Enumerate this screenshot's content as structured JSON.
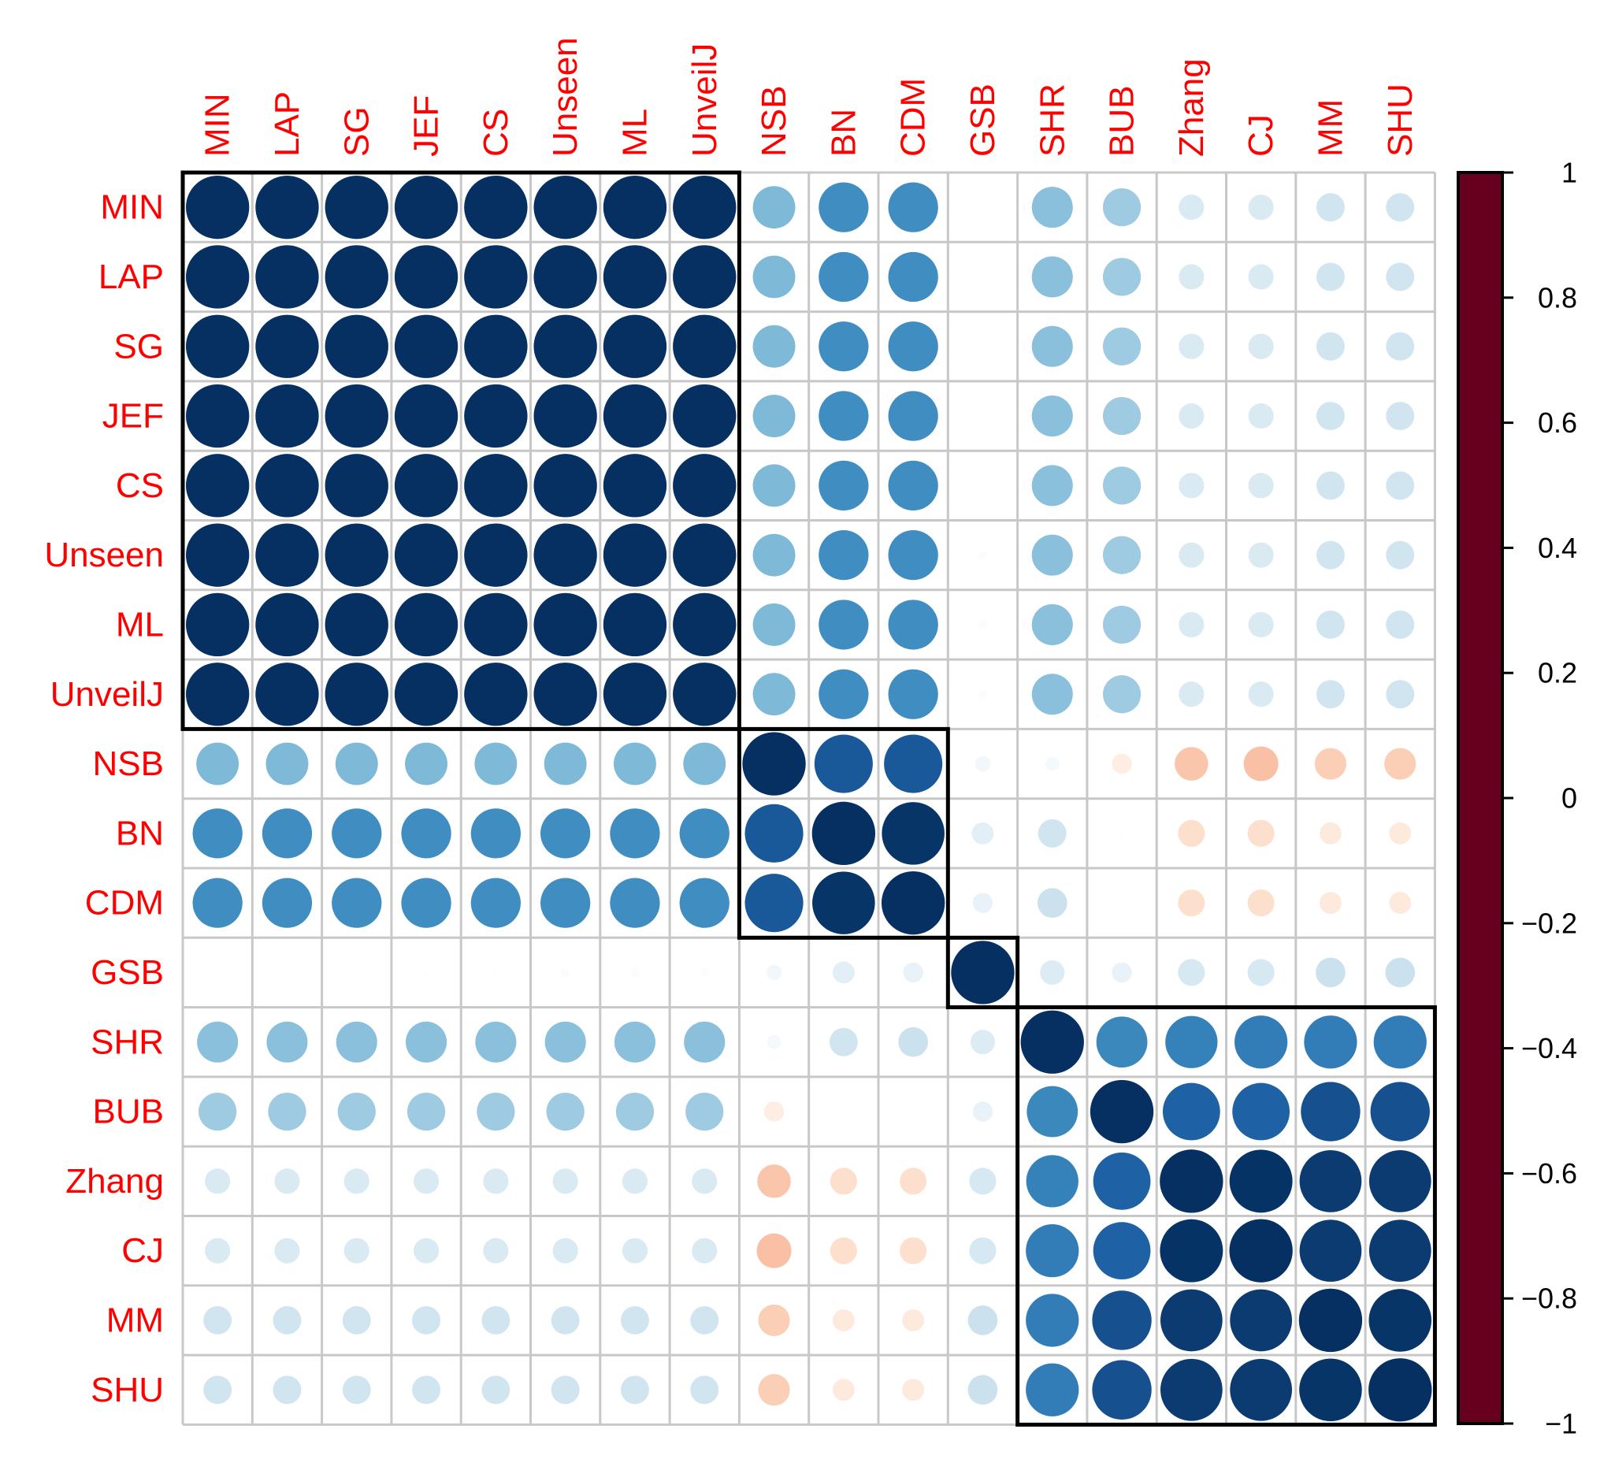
{
  "chart_data": {
    "type": "heatmap",
    "style": "correlation-circles",
    "labels": [
      "MIN",
      "LAP",
      "SG",
      "JEF",
      "CS",
      "Unseen",
      "ML",
      "UnveilJ",
      "NSB",
      "BN",
      "CDM",
      "GSB",
      "SHR",
      "BUB",
      "Zhang",
      "CJ",
      "MM",
      "SHU"
    ],
    "matrix": [
      [
        1,
        1,
        1,
        1,
        1,
        1,
        1,
        1,
        0.45,
        0.62,
        0.62,
        0,
        0.42,
        0.36,
        0.16,
        0.16,
        0.2,
        0.2
      ],
      [
        1,
        1,
        1,
        1,
        1,
        1,
        1,
        1,
        0.45,
        0.62,
        0.62,
        0,
        0.42,
        0.36,
        0.16,
        0.16,
        0.2,
        0.2
      ],
      [
        1,
        1,
        1,
        1,
        1,
        1,
        1,
        1,
        0.45,
        0.62,
        0.62,
        0,
        0.42,
        0.36,
        0.16,
        0.16,
        0.2,
        0.2
      ],
      [
        1,
        1,
        1,
        1,
        1,
        1,
        1,
        1,
        0.45,
        0.62,
        0.62,
        0,
        0.42,
        0.36,
        0.16,
        0.16,
        0.2,
        0.2
      ],
      [
        1,
        1,
        1,
        1,
        1,
        1,
        1,
        1,
        0.45,
        0.62,
        0.62,
        0.01,
        0.42,
        0.36,
        0.16,
        0.16,
        0.2,
        0.2
      ],
      [
        1,
        1,
        1,
        1,
        1,
        1,
        1,
        1,
        0.45,
        0.62,
        0.62,
        0.02,
        0.42,
        0.36,
        0.16,
        0.16,
        0.2,
        0.2
      ],
      [
        1,
        1,
        1,
        1,
        1,
        1,
        1,
        1,
        0.45,
        0.62,
        0.62,
        0.02,
        0.42,
        0.36,
        0.16,
        0.16,
        0.2,
        0.2
      ],
      [
        1,
        1,
        1,
        1,
        1,
        1,
        1,
        1,
        0.45,
        0.62,
        0.62,
        0.02,
        0.42,
        0.36,
        0.16,
        0.16,
        0.2,
        0.2
      ],
      [
        0.45,
        0.45,
        0.45,
        0.45,
        0.45,
        0.45,
        0.45,
        0.45,
        1,
        0.85,
        0.85,
        0.06,
        0.05,
        -0.1,
        -0.28,
        -0.3,
        -0.25,
        -0.25
      ],
      [
        0.62,
        0.62,
        0.62,
        0.62,
        0.62,
        0.62,
        0.62,
        0.62,
        0.85,
        1,
        0.98,
        0.12,
        0.2,
        0.01,
        -0.18,
        -0.18,
        -0.12,
        -0.12
      ],
      [
        0.62,
        0.62,
        0.62,
        0.62,
        0.62,
        0.62,
        0.62,
        0.62,
        0.85,
        0.98,
        1,
        0.1,
        0.22,
        0,
        -0.18,
        -0.18,
        -0.12,
        -0.12
      ],
      [
        0,
        0,
        0,
        0.01,
        0.01,
        0.02,
        0.02,
        0.02,
        0.06,
        0.12,
        0.1,
        1,
        0.15,
        0.1,
        0.18,
        0.18,
        0.22,
        0.22
      ],
      [
        0.42,
        0.42,
        0.42,
        0.42,
        0.42,
        0.42,
        0.42,
        0.42,
        0.05,
        0.2,
        0.22,
        0.15,
        1,
        0.65,
        0.68,
        0.7,
        0.7,
        0.7
      ],
      [
        0.36,
        0.36,
        0.36,
        0.36,
        0.36,
        0.36,
        0.36,
        0.36,
        -0.1,
        0.01,
        0,
        0.1,
        0.65,
        1,
        0.82,
        0.82,
        0.88,
        0.88
      ],
      [
        0.16,
        0.16,
        0.16,
        0.16,
        0.16,
        0.16,
        0.16,
        0.16,
        -0.28,
        -0.18,
        -0.18,
        0.18,
        0.68,
        0.82,
        1,
        0.99,
        0.96,
        0.96
      ],
      [
        0.16,
        0.16,
        0.16,
        0.16,
        0.16,
        0.16,
        0.16,
        0.16,
        -0.3,
        -0.18,
        -0.18,
        0.18,
        0.7,
        0.82,
        0.99,
        1,
        0.96,
        0.96
      ],
      [
        0.2,
        0.2,
        0.2,
        0.2,
        0.2,
        0.2,
        0.2,
        0.2,
        -0.25,
        -0.12,
        -0.12,
        0.22,
        0.7,
        0.88,
        0.96,
        0.96,
        1,
        0.98
      ],
      [
        0.2,
        0.2,
        0.2,
        0.2,
        0.2,
        0.2,
        0.2,
        0.2,
        -0.25,
        -0.12,
        -0.12,
        0.22,
        0.7,
        0.88,
        0.96,
        0.96,
        0.98,
        1
      ]
    ],
    "clusters": [
      {
        "start": 0,
        "end": 7
      },
      {
        "start": 8,
        "end": 10
      },
      {
        "start": 11,
        "end": 11
      },
      {
        "start": 12,
        "end": 17
      }
    ],
    "colorbar": {
      "min": -1,
      "max": 1,
      "tick_labels": [
        "1",
        "0.8",
        "0.6",
        "0.4",
        "0.2",
        "0",
        "−0.2",
        "−0.4",
        "−0.6",
        "−0.8",
        "−1"
      ],
      "tick_values": [
        1,
        0.8,
        0.6,
        0.4,
        0.2,
        0,
        -0.2,
        -0.4,
        -0.6,
        -0.8,
        -1
      ]
    },
    "colors": {
      "label": "#ff0000",
      "grid": "#c8c8c8",
      "cluster_box": "#000000",
      "scale": [
        "#67001f",
        "#b2182b",
        "#d6604d",
        "#f4a582",
        "#fddbc7",
        "#ffffff",
        "#d1e5f0",
        "#92c5de",
        "#4393c3",
        "#2166ac",
        "#053061"
      ]
    }
  }
}
